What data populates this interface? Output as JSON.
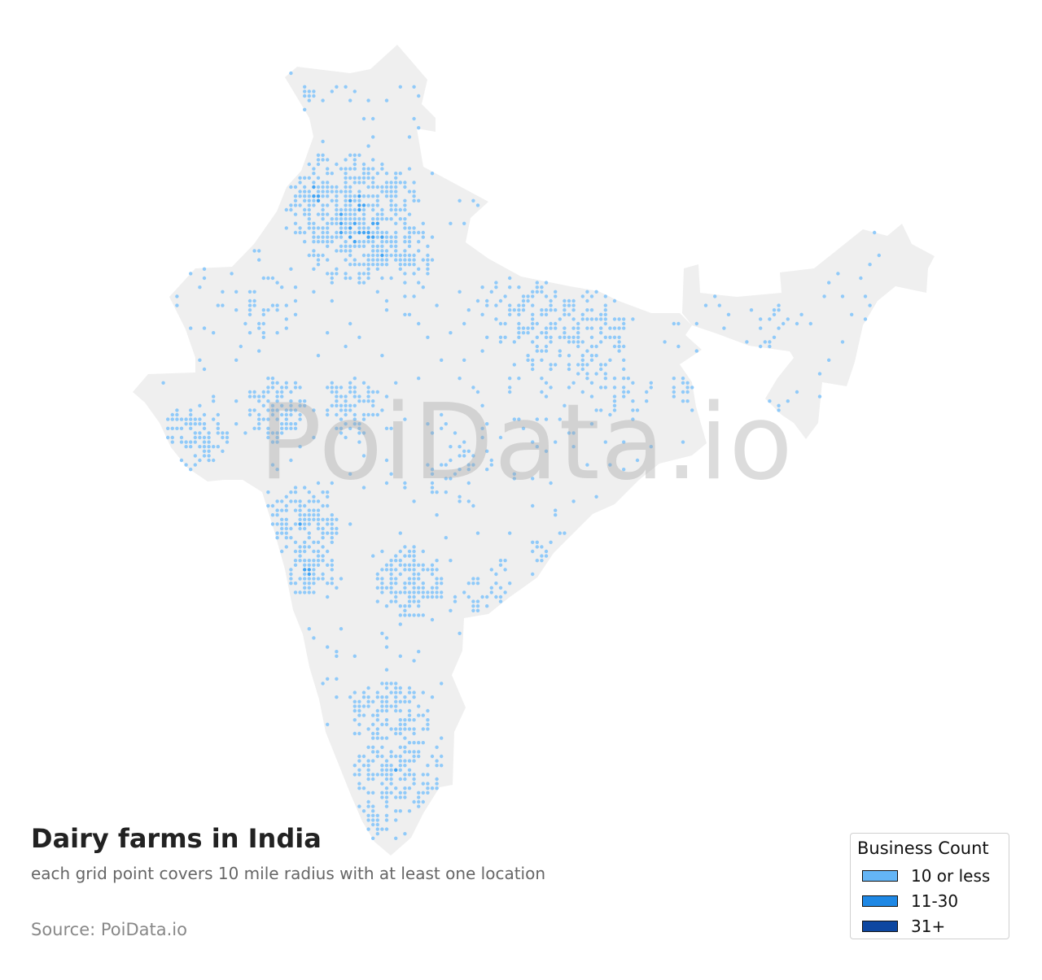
{
  "title": "Dairy farms in India",
  "subtitle": "each grid point covers 10 mile radius with at least one location",
  "source": "Source: PoiData.io",
  "watermark": "PoiData.io",
  "legend": {
    "title": "Business Count",
    "items": [
      {
        "label": "10 or less",
        "color": "#64b5f6"
      },
      {
        "label": "11-30",
        "color": "#1e88e5"
      },
      {
        "label": "31+",
        "color": "#0d47a1"
      }
    ]
  },
  "colors": {
    "land": "#efefef",
    "point_low": "#90caf9",
    "point_mid": "#42a5f5",
    "point_high": "#1565c0"
  }
}
